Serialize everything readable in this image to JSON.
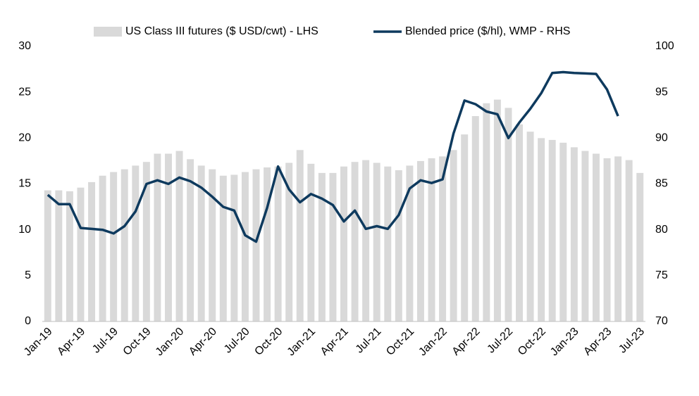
{
  "chart_data": {
    "type": "bar_line",
    "categories": [
      "Jan-19",
      null,
      null,
      "Apr-19",
      null,
      null,
      "Jul-19",
      null,
      null,
      "Oct-19",
      null,
      null,
      "Jan-20",
      null,
      null,
      "Apr-20",
      null,
      null,
      "Jul-20",
      null,
      null,
      "Oct-20",
      null,
      null,
      "Jan-21",
      null,
      null,
      "Apr-21",
      null,
      null,
      "Jul-21",
      null,
      null,
      "Oct-21",
      null,
      null,
      "Jan-22",
      null,
      null,
      "Apr-22",
      null,
      null,
      "Jul-22",
      null,
      null,
      "Oct-22",
      null,
      null,
      "Jan-23",
      null,
      null,
      "Apr-23",
      null,
      null,
      "Jul-23"
    ],
    "series": [
      {
        "name": "US Class III futures ($ USD/cwt) - LHS",
        "type": "bar",
        "color": "#d9d9d9",
        "values": [
          14.3,
          14.3,
          14.2,
          14.6,
          15.2,
          15.9,
          16.3,
          16.6,
          17.0,
          17.4,
          18.3,
          18.3,
          18.6,
          17.7,
          17.0,
          16.6,
          15.9,
          16.0,
          16.3,
          16.6,
          16.8,
          16.9,
          17.3,
          18.7,
          17.2,
          16.2,
          16.2,
          16.9,
          17.4,
          17.6,
          17.3,
          16.9,
          16.5,
          17.0,
          17.5,
          17.8,
          18.0,
          18.7,
          20.4,
          22.4,
          23.8,
          24.2,
          23.3,
          21.5,
          20.7,
          20.0,
          19.8,
          19.5,
          19.0,
          18.6,
          18.3,
          17.8,
          18.0,
          17.6,
          16.2
        ]
      },
      {
        "name": "Blended price ($/hl), WMP - RHS",
        "type": "line",
        "axis": "y2",
        "color": "#0e3a5e",
        "values": [
          83.8,
          82.8,
          82.8,
          80.2,
          80.1,
          80.0,
          79.6,
          80.4,
          82.0,
          85.0,
          85.4,
          85.0,
          85.7,
          85.3,
          84.6,
          83.6,
          82.5,
          82.1,
          79.4,
          78.7,
          82.4,
          86.9,
          84.4,
          83.0,
          83.9,
          83.4,
          82.7,
          80.9,
          82.1,
          80.1,
          80.4,
          80.1,
          81.6,
          84.5,
          85.4,
          85.1,
          85.5,
          90.5,
          94.1,
          93.7,
          92.9,
          92.6,
          90.0,
          91.7,
          93.2,
          94.9,
          97.1,
          97.2,
          97.1,
          97.05,
          97.0,
          95.3,
          92.4,
          null,
          null
        ]
      }
    ],
    "ylim": [
      0,
      30
    ],
    "yticks": [
      0,
      5,
      10,
      15,
      20,
      25,
      30
    ],
    "y2lim": [
      70,
      100
    ],
    "y2ticks": [
      70,
      75,
      80,
      85,
      90,
      95,
      100
    ],
    "legend": "top",
    "grid": false
  }
}
